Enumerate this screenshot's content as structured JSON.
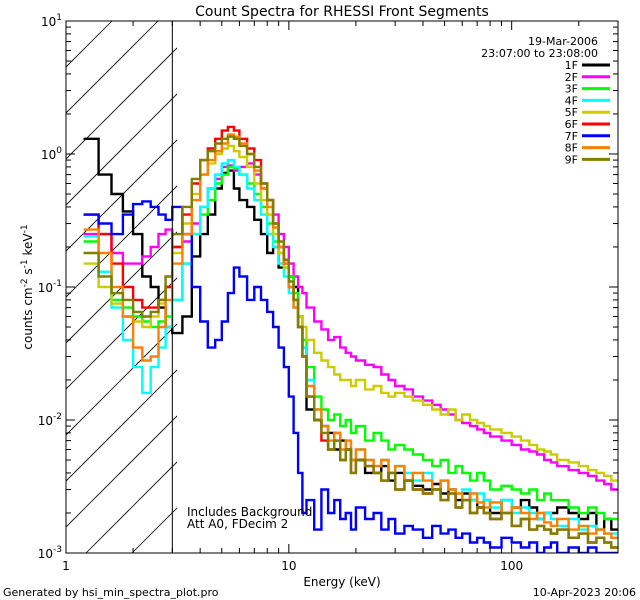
{
  "chart_data": {
    "type": "line",
    "title": "Count Spectra for RHESSI Front Segments",
    "xlabel": "Energy (keV)",
    "ylabel_parts": [
      "counts cm",
      "-2",
      " s",
      "-1",
      " keV",
      "-1"
    ],
    "x_scale": "log",
    "y_scale": "log",
    "xlim": [
      1,
      300
    ],
    "ylim": [
      0.001,
      10
    ],
    "x_ticks": [
      {
        "value": 1,
        "label": "1"
      },
      {
        "value": 10,
        "label": "10"
      },
      {
        "value": 100,
        "label": "100"
      }
    ],
    "y_ticks": [
      {
        "value": 10,
        "base": "10",
        "exp": "1"
      },
      {
        "value": 1,
        "base": "10",
        "exp": "0"
      },
      {
        "value": 0.1,
        "base": "10",
        "exp": "-1"
      },
      {
        "value": 0.01,
        "base": "10",
        "exp": "-2"
      },
      {
        "value": 0.001,
        "base": "10",
        "exp": "-3"
      }
    ],
    "hatched_region": {
      "x_from": 1,
      "x_to": 3
    },
    "date": "19-Mar-2006",
    "time_range": "23:07:00 to 23:08:00",
    "annotations": [
      "Includes Background",
      "Att A0, FDecim 2"
    ],
    "legend_position": "top-right",
    "footer_left": "Generated by hsi_min_spectra_plot.pro",
    "footer_right": "10-Apr-2023 20:06",
    "energy_bins": [
      1.2,
      1.4,
      1.6,
      1.8,
      2.0,
      2.2,
      2.4,
      2.6,
      2.8,
      3.0,
      3.33,
      3.67,
      4.0,
      4.33,
      4.67,
      5.0,
      5.33,
      5.67,
      6.0,
      6.5,
      7.0,
      7.5,
      8.0,
      8.5,
      9.0,
      9.5,
      10.0,
      10.5,
      11.0,
      11.5,
      12.0,
      13,
      14,
      15,
      16,
      17,
      18,
      19,
      20,
      22,
      24,
      26,
      28,
      30,
      33,
      36,
      40,
      44,
      48,
      52,
      56,
      60,
      65,
      70,
      75,
      80,
      90,
      100,
      110,
      120,
      130,
      140,
      150,
      160,
      180,
      200,
      220,
      240,
      260,
      280,
      300
    ],
    "series": [
      {
        "name": "1F",
        "color": "#000000",
        "values": [
          1.3,
          0.7,
          0.5,
          0.37,
          0.25,
          0.12,
          0.1,
          0.07,
          0.05,
          0.045,
          0.06,
          0.17,
          0.25,
          0.35,
          0.55,
          0.72,
          0.75,
          0.55,
          0.45,
          0.4,
          0.32,
          0.25,
          0.18,
          0.2,
          0.14,
          0.16,
          0.12,
          0.1,
          0.06,
          0.035,
          0.012,
          0.01,
          0.009,
          0.008,
          0.006,
          0.007,
          0.006,
          0.005,
          0.005,
          0.004,
          0.004,
          0.0045,
          0.0035,
          0.004,
          0.0035,
          0.0032,
          0.003,
          0.0033,
          0.0028,
          0.003,
          0.0025,
          0.0028,
          0.0025,
          0.0022,
          0.0025,
          0.002,
          0.0025,
          0.0022,
          0.0025,
          0.0022,
          0.0018,
          0.002,
          0.002,
          0.0022,
          0.002,
          0.0018,
          0.002,
          0.0015,
          0.0018,
          0.0015,
          0.0015
        ]
      },
      {
        "name": "2F",
        "color": "#ff00ff",
        "values": [
          0.25,
          0.25,
          0.18,
          0.15,
          0.15,
          0.17,
          0.2,
          0.25,
          0.27,
          0.2,
          0.22,
          0.3,
          0.4,
          0.55,
          0.65,
          0.8,
          0.82,
          0.75,
          0.8,
          0.85,
          0.7,
          0.55,
          0.45,
          0.35,
          0.25,
          0.2,
          0.15,
          0.12,
          0.1,
          0.09,
          0.07,
          0.055,
          0.048,
          0.04,
          0.042,
          0.035,
          0.032,
          0.03,
          0.028,
          0.026,
          0.025,
          0.022,
          0.02,
          0.018,
          0.017,
          0.015,
          0.014,
          0.013,
          0.012,
          0.011,
          0.01,
          0.0095,
          0.009,
          0.0085,
          0.008,
          0.0075,
          0.007,
          0.0065,
          0.006,
          0.0058,
          0.0055,
          0.005,
          0.0048,
          0.0045,
          0.0042,
          0.004,
          0.0038,
          0.0035,
          0.0033,
          0.003,
          0.003
        ]
      },
      {
        "name": "3F",
        "color": "#00ff00",
        "values": [
          0.22,
          0.13,
          0.08,
          0.07,
          0.06,
          0.055,
          0.05,
          0.055,
          0.06,
          0.08,
          0.15,
          0.25,
          0.35,
          0.45,
          0.6,
          0.7,
          0.8,
          0.78,
          0.7,
          0.6,
          0.5,
          0.4,
          0.3,
          0.22,
          0.18,
          0.14,
          0.12,
          0.09,
          0.06,
          0.04,
          0.025,
          0.015,
          0.012,
          0.01,
          0.011,
          0.009,
          0.01,
          0.008,
          0.009,
          0.007,
          0.008,
          0.007,
          0.006,
          0.0065,
          0.006,
          0.0055,
          0.005,
          0.0045,
          0.005,
          0.004,
          0.0045,
          0.004,
          0.0035,
          0.004,
          0.0035,
          0.003,
          0.0032,
          0.003,
          0.0028,
          0.003,
          0.0025,
          0.0028,
          0.0025,
          0.0025,
          0.0022,
          0.002,
          0.0022,
          0.002,
          0.0018,
          0.0018,
          0.0018
        ]
      },
      {
        "name": "4F",
        "color": "#00ffff",
        "values": [
          0.24,
          0.13,
          0.07,
          0.04,
          0.025,
          0.016,
          0.025,
          0.035,
          0.05,
          0.08,
          0.15,
          0.25,
          0.4,
          0.55,
          0.7,
          0.85,
          0.9,
          0.8,
          0.7,
          0.55,
          0.45,
          0.35,
          0.25,
          0.2,
          0.15,
          0.12,
          0.09,
          0.07,
          0.05,
          0.035,
          0.02,
          0.012,
          0.009,
          0.006,
          0.007,
          0.005,
          0.006,
          0.005,
          0.006,
          0.005,
          0.0045,
          0.005,
          0.004,
          0.0045,
          0.004,
          0.0035,
          0.004,
          0.003,
          0.0035,
          0.003,
          0.0028,
          0.003,
          0.0025,
          0.0028,
          0.0025,
          0.0022,
          0.0025,
          0.002,
          0.0022,
          0.002,
          0.0018,
          0.002,
          0.0018,
          0.0016,
          0.0018,
          0.0015,
          0.0016,
          0.0015,
          0.0014,
          0.0014,
          0.0014
        ]
      },
      {
        "name": "5F",
        "color": "#cccc00",
        "values": [
          0.15,
          0.1,
          0.075,
          0.06,
          0.055,
          0.05,
          0.06,
          0.075,
          0.1,
          0.18,
          0.3,
          0.5,
          0.7,
          0.85,
          1.0,
          1.1,
          1.15,
          1.05,
          0.95,
          0.8,
          0.6,
          0.45,
          0.35,
          0.25,
          0.18,
          0.14,
          0.1,
          0.08,
          0.06,
          0.05,
          0.04,
          0.032,
          0.028,
          0.025,
          0.022,
          0.02,
          0.02,
          0.018,
          0.02,
          0.017,
          0.018,
          0.016,
          0.015,
          0.016,
          0.015,
          0.014,
          0.013,
          0.012,
          0.011,
          0.012,
          0.01,
          0.011,
          0.01,
          0.0095,
          0.009,
          0.0085,
          0.008,
          0.0075,
          0.007,
          0.0065,
          0.006,
          0.0058,
          0.0055,
          0.005,
          0.0048,
          0.0045,
          0.0042,
          0.004,
          0.0038,
          0.0035,
          0.0035
        ]
      },
      {
        "name": "6F",
        "color": "#ff0000",
        "values": [
          0.35,
          0.25,
          0.15,
          0.1,
          0.08,
          0.07,
          0.07,
          0.08,
          0.1,
          0.2,
          0.35,
          0.6,
          0.9,
          1.1,
          1.3,
          1.5,
          1.6,
          1.5,
          1.3,
          1.1,
          0.9,
          0.6,
          0.45,
          0.3,
          0.2,
          0.15,
          0.1,
          0.08,
          0.05,
          0.03,
          0.015,
          0.01,
          0.007,
          0.006,
          0.008,
          0.005,
          0.006,
          0.004,
          0.005,
          0.0045,
          0.004,
          0.0035,
          0.004,
          0.003,
          0.0035,
          0.003,
          0.0028,
          0.003,
          0.0025,
          0.0028,
          0.0022,
          0.0025,
          0.002,
          0.0022,
          0.002,
          0.0018,
          0.002,
          0.0016,
          0.0018,
          0.0015,
          0.0016,
          0.0015,
          0.0014,
          0.0015,
          0.0013,
          0.0014,
          0.0012,
          0.0013,
          0.0012,
          0.0011,
          0.0011
        ]
      },
      {
        "name": "7F",
        "color": "#0000ff",
        "values": [
          0.35,
          0.3,
          0.25,
          0.35,
          0.42,
          0.44,
          0.4,
          0.35,
          0.32,
          0.4,
          0.25,
          0.1,
          0.055,
          0.035,
          0.04,
          0.055,
          0.09,
          0.14,
          0.12,
          0.08,
          0.1,
          0.08,
          0.065,
          0.05,
          0.035,
          0.025,
          0.015,
          0.008,
          0.004,
          0.002,
          0.0025,
          0.0015,
          0.003,
          0.002,
          0.0025,
          0.0018,
          0.002,
          0.0015,
          0.0022,
          0.0018,
          0.002,
          0.0015,
          0.0018,
          0.0014,
          0.0016,
          0.0015,
          0.0013,
          0.0016,
          0.0014,
          0.0015,
          0.0013,
          0.0014,
          0.0012,
          0.0013,
          0.0012,
          0.0011,
          0.0013,
          0.0012,
          0.0011,
          0.0012,
          0.001,
          0.0011,
          0.0012,
          0.001,
          0.0011,
          0.001,
          0.0011,
          0.001,
          0.001,
          0.001,
          0.001
        ]
      },
      {
        "name": "8F",
        "color": "#ff8000",
        "values": [
          0.27,
          0.18,
          0.1,
          0.06,
          0.035,
          0.028,
          0.03,
          0.05,
          0.08,
          0.15,
          0.25,
          0.45,
          0.7,
          0.9,
          1.05,
          1.2,
          1.4,
          1.35,
          1.2,
          1.0,
          0.75,
          0.55,
          0.4,
          0.28,
          0.2,
          0.15,
          0.1,
          0.07,
          0.05,
          0.03,
          0.018,
          0.012,
          0.009,
          0.007,
          0.008,
          0.006,
          0.007,
          0.005,
          0.006,
          0.005,
          0.0045,
          0.005,
          0.004,
          0.0045,
          0.0035,
          0.004,
          0.0035,
          0.003,
          0.0035,
          0.003,
          0.0028,
          0.0025,
          0.0028,
          0.0024,
          0.0022,
          0.0024,
          0.002,
          0.0022,
          0.002,
          0.0018,
          0.002,
          0.0017,
          0.0016,
          0.0018,
          0.0015,
          0.0016,
          0.0014,
          0.0015,
          0.0014,
          0.0013,
          0.0013
        ]
      },
      {
        "name": "9F",
        "color": "#808000",
        "values": [
          0.18,
          0.12,
          0.09,
          0.08,
          0.065,
          0.06,
          0.065,
          0.08,
          0.12,
          0.25,
          0.4,
          0.65,
          0.9,
          1.05,
          1.2,
          1.3,
          1.35,
          1.3,
          1.15,
          1.0,
          0.8,
          0.6,
          0.45,
          0.3,
          0.22,
          0.16,
          0.11,
          0.08,
          0.05,
          0.03,
          0.015,
          0.01,
          0.008,
          0.006,
          0.007,
          0.005,
          0.006,
          0.004,
          0.005,
          0.0045,
          0.004,
          0.0035,
          0.004,
          0.003,
          0.0035,
          0.003,
          0.0028,
          0.003,
          0.0025,
          0.0028,
          0.0022,
          0.0025,
          0.002,
          0.0022,
          0.002,
          0.0018,
          0.002,
          0.0016,
          0.0018,
          0.0015,
          0.0016,
          0.0015,
          0.0014,
          0.0015,
          0.0013,
          0.0014,
          0.0012,
          0.0013,
          0.0012,
          0.0011,
          0.0011
        ]
      }
    ]
  }
}
